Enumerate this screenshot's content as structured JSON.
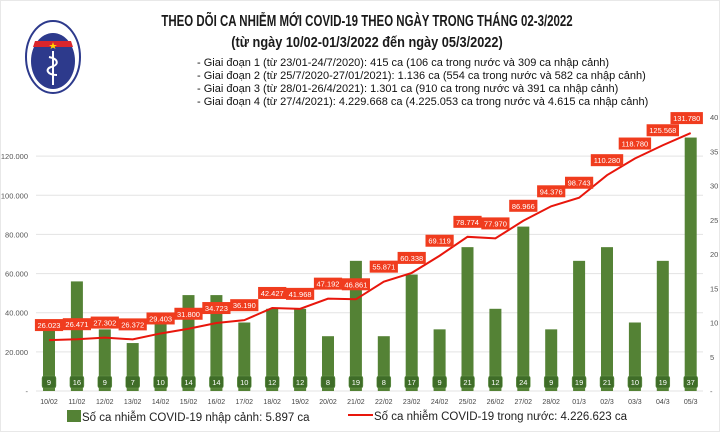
{
  "header": {
    "title": "THEO DÕI CA NHIỄM MỚI COVID-19 THEO NGÀY TRONG THÁNG 02-3/2022",
    "subtitle": "(từ ngày 10/02-01/3/2022 đến ngày 05/3/2022)",
    "notes": [
      "- Giai đoạn 1 (từ 23/01-24/7/2020): 415 ca (106 ca trong nước và 309 ca nhập cảnh)",
      "- Giai đoạn 2 (từ 25/7/2020-27/01/2021): 1.136 ca (554 ca trong nước và 582 ca nhập cảnh)",
      "- Giai đoạn 3 (từ 28/01-26/4/2021): 1.301 ca (910 ca trong nước và 391 ca nhập cảnh)",
      "- Giai đoạn 4 (từ 27/4/2021): 4.229.668 ca (4.225.053 ca trong nước và 4.615 ca nhập cảnh)"
    ],
    "logo_text": "BỘ Y TẾ · MINISTRY OF HEALTH"
  },
  "chart_data": {
    "type": "bar+line",
    "title": "THEO DÕI CA NHIỄM MỚI COVID-19 THEO NGÀY TRONG THÁNG 02-3/2022",
    "categories": [
      "10/02",
      "11/02",
      "12/02",
      "13/02",
      "14/02",
      "15/02",
      "16/02",
      "17/02",
      "18/02",
      "19/02",
      "20/02",
      "21/02",
      "22/02",
      "23/02",
      "24/02",
      "25/02",
      "26/02",
      "27/02",
      "28/02",
      "01/3",
      "02/3",
      "03/3",
      "04/3",
      "05/3"
    ],
    "series": [
      {
        "name": "Số ca nhiễm COVID-19 nhập cảnh: 5.897 ca",
        "type": "bar",
        "axis": "right",
        "color": "#548235",
        "values": [
          9,
          16,
          9,
          7,
          10,
          14,
          14,
          10,
          12,
          12,
          8,
          19,
          8,
          17,
          9,
          21,
          12,
          24,
          9,
          19,
          21,
          10,
          19,
          37
        ]
      },
      {
        "name": "Số ca nhiễm COVID-19 trong nước: 4.226.623 ca",
        "type": "line",
        "axis": "left",
        "color": "#e8160c",
        "values": [
          26023,
          26471,
          27302,
          26372,
          29403,
          31800,
          34723,
          36190,
          42427,
          41968,
          47192,
          46861,
          55871,
          60338,
          69119,
          78774,
          77970,
          86966,
          94376,
          98743,
          110280,
          118780,
          125568,
          131780
        ],
        "labels": [
          "26.023",
          "26.471",
          "27.302",
          "26.372",
          "29.403",
          "31.800",
          "34.723",
          "36.190",
          "42.427",
          "41.968",
          "47.192",
          "46.861",
          "55.871",
          "60.338",
          "69.119",
          "78.774",
          "77.970",
          "86.966",
          "94.376",
          "98.743",
          "110.280",
          "118.780",
          "125.568",
          "131.780"
        ]
      }
    ],
    "left_axis": {
      "ylim": [
        0,
        140000
      ],
      "ticks": [
        "-",
        "20.000",
        "40.000",
        "60.000",
        "80.000",
        "100.000",
        "120.000"
      ]
    },
    "right_axis": {
      "ylim": [
        0,
        40
      ],
      "ticks": [
        "-",
        "5",
        "10",
        "15",
        "20",
        "25",
        "30",
        "35",
        "40"
      ]
    },
    "grid": true,
    "legend": "bottom"
  }
}
